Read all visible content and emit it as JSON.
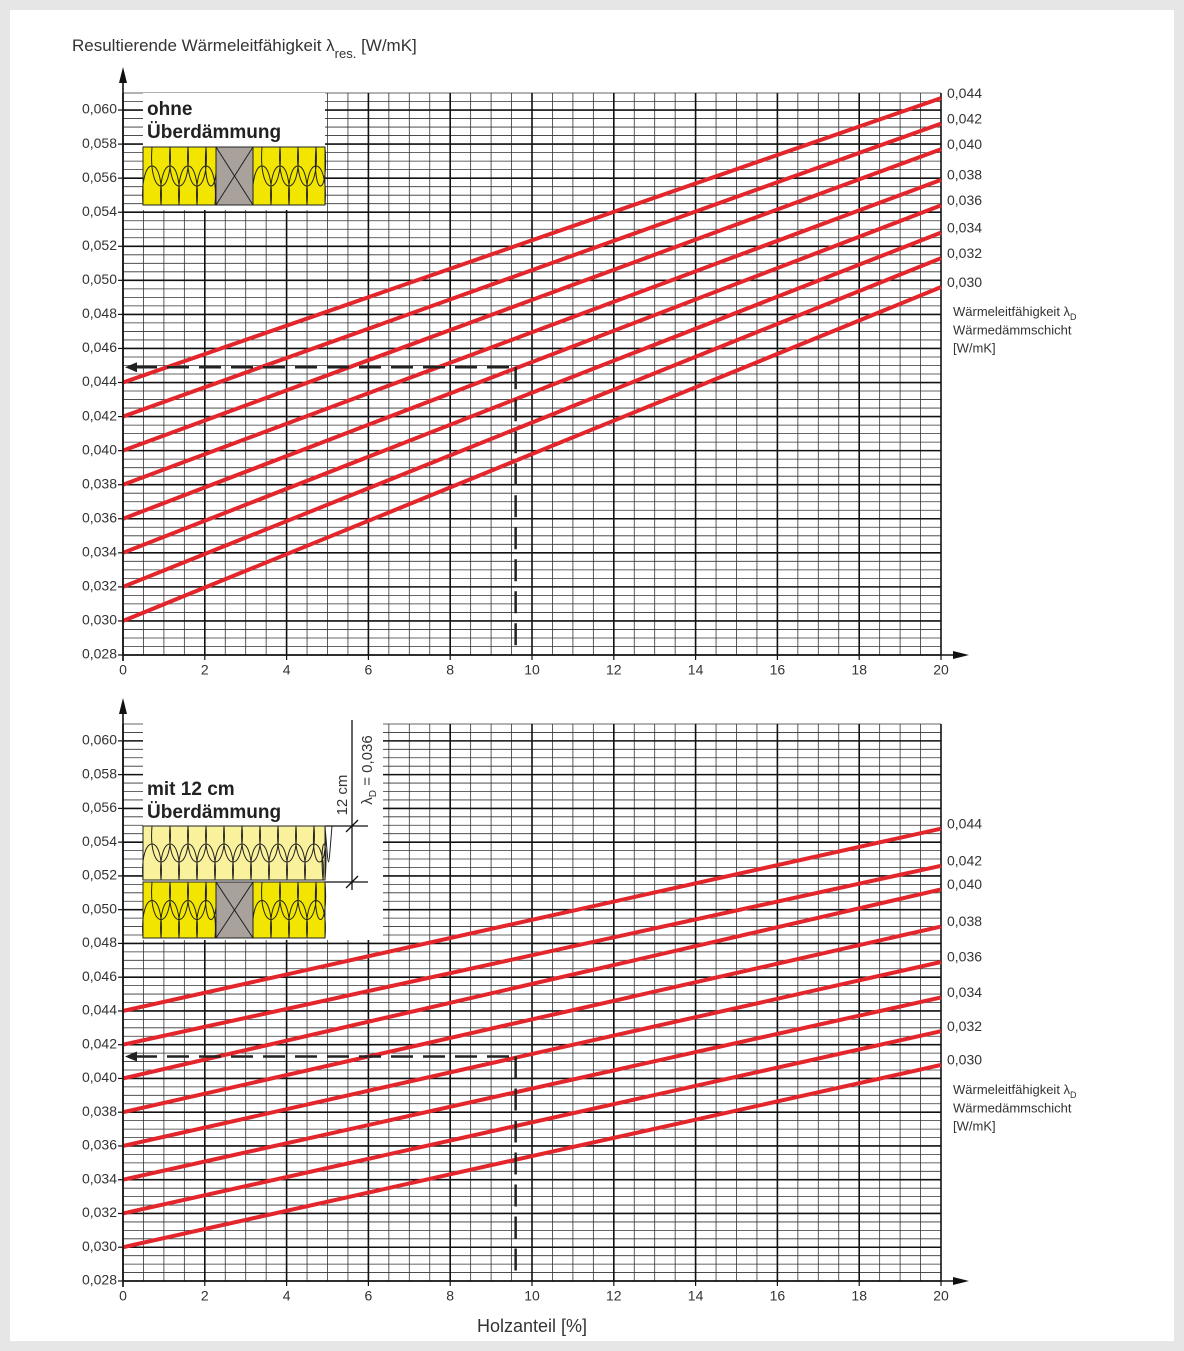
{
  "chart_data": [
    {
      "type": "line",
      "y_label": {
        "text": "Resultierende Wärmeleitfähigkeit λ",
        "sub": "res.",
        "after": " [W/mK]"
      },
      "x": [
        0,
        20
      ],
      "series": [
        {
          "name": "0,030",
          "color": "#e2262c",
          "values": [
            0.03,
            0.0496
          ]
        },
        {
          "name": "0,032",
          "color": "#e2262c",
          "values": [
            0.032,
            0.0513
          ]
        },
        {
          "name": "0,034",
          "color": "#e2262c",
          "values": [
            0.034,
            0.0528
          ]
        },
        {
          "name": "0,036",
          "color": "#e2262c",
          "values": [
            0.036,
            0.0544
          ]
        },
        {
          "name": "0,038",
          "color": "#e2262c",
          "values": [
            0.038,
            0.0559
          ]
        },
        {
          "name": "0,040",
          "color": "#e2262c",
          "values": [
            0.04,
            0.0577
          ]
        },
        {
          "name": "0,042",
          "color": "#e2262c",
          "values": [
            0.042,
            0.0592
          ]
        },
        {
          "name": "0,044",
          "color": "#e2262c",
          "values": [
            0.044,
            0.0607
          ]
        }
      ],
      "legend_title": {
        "text": "Wärmeleitfähigkeit λ",
        "sub": "D",
        "line2": "Wärmedämmschicht",
        "line3": "[W/mK]"
      },
      "xlim": [
        0,
        20
      ],
      "xticks": [
        0,
        2,
        4,
        6,
        8,
        10,
        12,
        14,
        16,
        18,
        20
      ],
      "ylim": [
        0.028,
        0.061
      ],
      "yticks": [
        {
          "value": 0.028,
          "label": "0,028"
        },
        {
          "value": 0.03,
          "label": "0,030"
        },
        {
          "value": 0.032,
          "label": "0,032"
        },
        {
          "value": 0.034,
          "label": "0,034"
        },
        {
          "value": 0.036,
          "label": "0,036"
        },
        {
          "value": 0.038,
          "label": "0,038"
        },
        {
          "value": 0.04,
          "label": "0,040"
        },
        {
          "value": 0.042,
          "label": "0,042"
        },
        {
          "value": 0.044,
          "label": "0,044"
        },
        {
          "value": 0.046,
          "label": "0,046"
        },
        {
          "value": 0.048,
          "label": "0,048"
        },
        {
          "value": 0.05,
          "label": "0,050"
        },
        {
          "value": 0.052,
          "label": "0,052"
        },
        {
          "value": 0.054,
          "label": "0,054"
        },
        {
          "value": 0.056,
          "label": "0,056"
        },
        {
          "value": 0.058,
          "label": "0,058"
        },
        {
          "value": 0.06,
          "label": "0,060"
        }
      ],
      "grid": true,
      "minor_grid": 4,
      "reading": {
        "x": 9.6,
        "y": 0.0449
      },
      "inset": {
        "title": [
          "ohne",
          "Überdämmung"
        ]
      }
    },
    {
      "type": "line",
      "x_label": "Holzanteil [%]",
      "x": [
        0,
        20
      ],
      "series": [
        {
          "name": "0,030",
          "color": "#e2262c",
          "values": [
            0.03,
            0.0408
          ]
        },
        {
          "name": "0,032",
          "color": "#e2262c",
          "values": [
            0.032,
            0.0428
          ]
        },
        {
          "name": "0,034",
          "color": "#e2262c",
          "values": [
            0.034,
            0.0448
          ]
        },
        {
          "name": "0,036",
          "color": "#e2262c",
          "values": [
            0.036,
            0.0469
          ]
        },
        {
          "name": "0,038",
          "color": "#e2262c",
          "values": [
            0.038,
            0.049
          ]
        },
        {
          "name": "0,040",
          "color": "#e2262c",
          "values": [
            0.04,
            0.0512
          ]
        },
        {
          "name": "0,042",
          "color": "#e2262c",
          "values": [
            0.042,
            0.0526
          ]
        },
        {
          "name": "0,044",
          "color": "#e2262c",
          "values": [
            0.044,
            0.0548
          ]
        }
      ],
      "legend_title": {
        "text": "Wärmeleitfähigkeit λ",
        "sub": "D",
        "line2": "Wärmedämmschicht",
        "line3": "[W/mK]"
      },
      "xlim": [
        0,
        20
      ],
      "xticks": [
        0,
        2,
        4,
        6,
        8,
        10,
        12,
        14,
        16,
        18,
        20
      ],
      "ylim": [
        0.028,
        0.061
      ],
      "yticks": [
        {
          "value": 0.028,
          "label": "0,028"
        },
        {
          "value": 0.03,
          "label": "0,030"
        },
        {
          "value": 0.032,
          "label": "0,032"
        },
        {
          "value": 0.034,
          "label": "0,034"
        },
        {
          "value": 0.036,
          "label": "0,036"
        },
        {
          "value": 0.038,
          "label": "0,038"
        },
        {
          "value": 0.04,
          "label": "0,040"
        },
        {
          "value": 0.042,
          "label": "0,042"
        },
        {
          "value": 0.044,
          "label": "0,044"
        },
        {
          "value": 0.046,
          "label": "0,046"
        },
        {
          "value": 0.048,
          "label": "0,048"
        },
        {
          "value": 0.05,
          "label": "0,050"
        },
        {
          "value": 0.052,
          "label": "0,052"
        },
        {
          "value": 0.054,
          "label": "0,054"
        },
        {
          "value": 0.056,
          "label": "0,056"
        },
        {
          "value": 0.058,
          "label": "0,058"
        },
        {
          "value": 0.06,
          "label": "0,060"
        }
      ],
      "grid": true,
      "minor_grid": 4,
      "reading": {
        "x": 9.6,
        "y": 0.0413
      },
      "inset": {
        "title": [
          "mit 12 cm",
          "Überdämmung"
        ],
        "dimension": "12 cm",
        "lambda": "λ",
        "lambda_sub": "D",
        "lambda_value": " = 0,036"
      }
    }
  ]
}
